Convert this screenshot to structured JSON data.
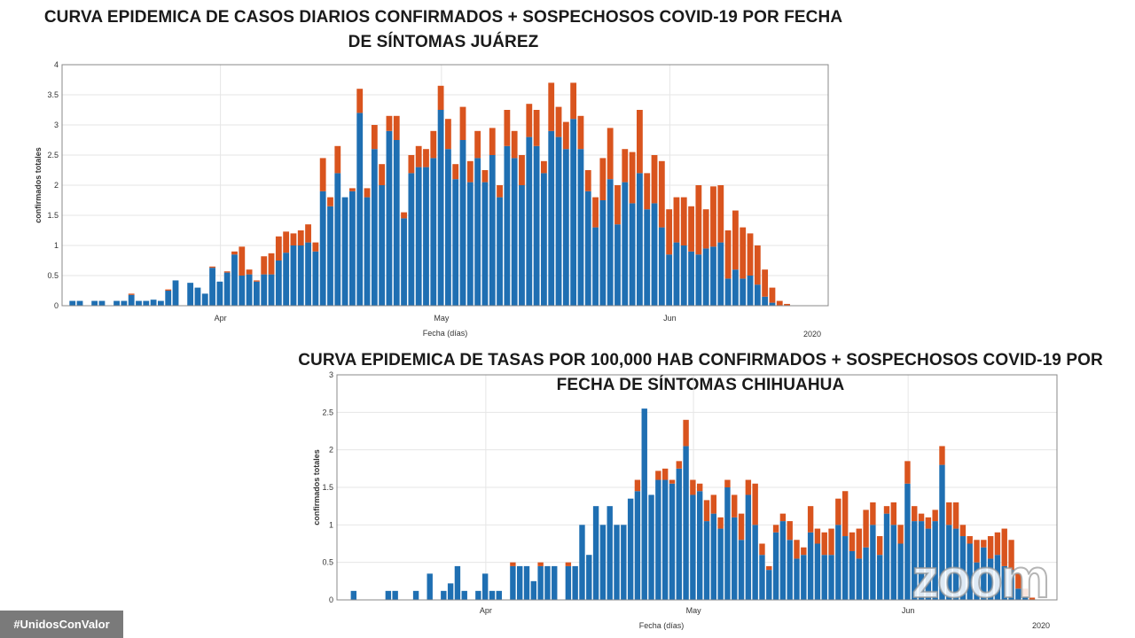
{
  "colors": {
    "confirmed": "#1f6fb2",
    "suspected": "#d9541e",
    "axis": "#888888",
    "grid": "#e6e6e6"
  },
  "hashtag": "#UnidosConValor",
  "watermark": "zoom",
  "chart_data": [
    {
      "type": "bar",
      "stacked": true,
      "title": "CURVA EPIDEMICA DE CASOS DIARIOS CONFIRMADOS  + SOSPECHOSOS COVID-19 POR FECHA DE SÍNTOMAS JUÁREZ",
      "xlabel": "Fecha (días)",
      "ylabel": "confirmados totales",
      "ylim": [
        0,
        4
      ],
      "yticks": [
        "0",
        "0.5",
        "1",
        "1.5",
        "2",
        "2.5",
        "3",
        "3.5",
        "4"
      ],
      "xticks": [
        {
          "label": "Apr",
          "index": 20
        },
        {
          "label": "May",
          "index": 50
        },
        {
          "label": "Jun",
          "index": 81
        }
      ],
      "year_label": "2020",
      "n_days": 102,
      "series": [
        {
          "name": "confirmados",
          "values": [
            0.08,
            0.08,
            0,
            0.08,
            0.08,
            0,
            0.08,
            0.08,
            0.18,
            0.08,
            0.08,
            0.1,
            0.08,
            0.25,
            0.42,
            0,
            0.38,
            0.3,
            0.2,
            0.63,
            0.4,
            0.55,
            0.85,
            0.5,
            0.52,
            0.4,
            0.52,
            0.52,
            0.75,
            0.88,
            1.0,
            1.0,
            1.05,
            0.9,
            1.9,
            1.65,
            2.2,
            1.8,
            1.9,
            3.2,
            1.8,
            2.6,
            2.0,
            2.9,
            2.75,
            1.45,
            2.2,
            2.3,
            2.3,
            2.45,
            3.25,
            2.6,
            2.1,
            2.75,
            2.05,
            2.45,
            2.05,
            2.5,
            1.8,
            2.65,
            2.45,
            2.0,
            2.8,
            2.65,
            2.2,
            2.9,
            2.8,
            2.6,
            3.1,
            2.6,
            1.9,
            1.3,
            1.75,
            2.1,
            1.35,
            2.05,
            1.7,
            2.2,
            1.6,
            1.7,
            1.3,
            0.85,
            1.05,
            1.0,
            0.9,
            0.85,
            0.95,
            0.98,
            1.05,
            0.45,
            0.6,
            0.45,
            0.5,
            0.35,
            0.15,
            0.05,
            0,
            0,
            0,
            0,
            0,
            0
          ]
        },
        {
          "name": "sospechosos",
          "values": [
            0,
            0,
            0,
            0,
            0,
            0,
            0,
            0,
            0.02,
            0,
            0,
            0,
            0,
            0.02,
            0,
            0,
            0,
            0,
            0,
            0.02,
            0,
            0.02,
            0.05,
            0.48,
            0.08,
            0.02,
            0.3,
            0.35,
            0.4,
            0.35,
            0.2,
            0.25,
            0.3,
            0.15,
            0.55,
            0.15,
            0.45,
            0.0,
            0.05,
            0.4,
            0.15,
            0.4,
            0.35,
            0.25,
            0.4,
            0.1,
            0.3,
            0.35,
            0.3,
            0.45,
            0.4,
            0.5,
            0.25,
            0.55,
            0.35,
            0.45,
            0.2,
            0.45,
            0.2,
            0.6,
            0.45,
            0.5,
            0.55,
            0.6,
            0.2,
            0.8,
            0.5,
            0.45,
            0.6,
            0.55,
            0.35,
            0.5,
            0.7,
            0.85,
            0.65,
            0.55,
            0.85,
            1.05,
            0.6,
            0.8,
            1.1,
            0.75,
            0.75,
            0.8,
            0.75,
            1.15,
            0.65,
            1.0,
            0.95,
            0.8,
            0.98,
            0.85,
            0.7,
            0.65,
            0.45,
            0.25,
            0.08,
            0.03,
            0,
            0,
            0,
            0
          ]
        }
      ]
    },
    {
      "type": "bar",
      "stacked": true,
      "title": "CURVA EPIDEMICA DE TASAS POR 100,000 HAB CONFIRMADOS + SOSPECHOSOS COVID-19 POR FECHA DE SÍNTOMAS CHIHUAHUA",
      "xlabel": "Fecha (días)",
      "ylabel": "confirmados totales",
      "ylim": [
        0,
        3
      ],
      "yticks": [
        "0",
        "0.5",
        "1",
        "1.5",
        "2",
        "2.5",
        "3"
      ],
      "xticks": [
        {
          "label": "Apr",
          "index": 20
        },
        {
          "label": "May",
          "index": 50
        },
        {
          "label": "Jun",
          "index": 81
        }
      ],
      "year_label": "2020",
      "n_days": 102,
      "series": [
        {
          "name": "confirmados",
          "values": [
            0,
            0.12,
            0,
            0,
            0,
            0,
            0.12,
            0.12,
            0,
            0,
            0.12,
            0,
            0.35,
            0,
            0.12,
            0.22,
            0.45,
            0.12,
            0,
            0.12,
            0.35,
            0.12,
            0.12,
            0,
            0.45,
            0.45,
            0.45,
            0.25,
            0.45,
            0.45,
            0.45,
            0,
            0.45,
            0.45,
            1.0,
            0.6,
            1.25,
            1.0,
            1.25,
            1.0,
            1.0,
            1.35,
            1.45,
            2.55,
            1.4,
            1.6,
            1.6,
            1.55,
            1.75,
            2.05,
            1.4,
            1.45,
            1.05,
            1.15,
            0.95,
            1.5,
            1.1,
            0.8,
            1.4,
            1.0,
            0.6,
            0.4,
            0.9,
            1.05,
            0.8,
            0.55,
            0.6,
            0.9,
            0.75,
            0.6,
            0.6,
            1.0,
            0.85,
            0.65,
            0.55,
            0.7,
            1.0,
            0.6,
            1.15,
            1.0,
            0.75,
            1.55,
            1.05,
            1.05,
            0.95,
            1.05,
            1.8,
            1.0,
            0.95,
            0.85,
            0.75,
            0.5,
            0.7,
            0.55,
            0.6,
            0.45,
            0.4,
            0.15,
            0.05,
            0,
            0,
            0
          ]
        },
        {
          "name": "sospechosos",
          "values": [
            0,
            0,
            0,
            0,
            0,
            0,
            0,
            0,
            0,
            0,
            0,
            0,
            0,
            0,
            0,
            0,
            0,
            0,
            0,
            0,
            0,
            0,
            0,
            0,
            0.05,
            0,
            0,
            0,
            0.05,
            0,
            0,
            0,
            0.05,
            0,
            0,
            0,
            0,
            0,
            0,
            0,
            0,
            0,
            0.15,
            0,
            0,
            0.12,
            0.15,
            0.05,
            0.1,
            0.35,
            0.2,
            0.1,
            0.28,
            0.25,
            0.15,
            0.1,
            0.3,
            0.35,
            0.2,
            0.55,
            0.15,
            0.05,
            0.1,
            0.1,
            0.25,
            0.25,
            0.1,
            0.35,
            0.2,
            0.3,
            0.35,
            0.35,
            0.6,
            0.25,
            0.4,
            0.5,
            0.3,
            0.25,
            0.1,
            0.3,
            0.25,
            0.3,
            0.2,
            0.1,
            0.15,
            0.15,
            0.25,
            0.3,
            0.35,
            0.15,
            0.1,
            0.3,
            0.1,
            0.3,
            0.3,
            0.5,
            0.4,
            0.2,
            0.1,
            0.03,
            0,
            0
          ]
        }
      ]
    }
  ]
}
